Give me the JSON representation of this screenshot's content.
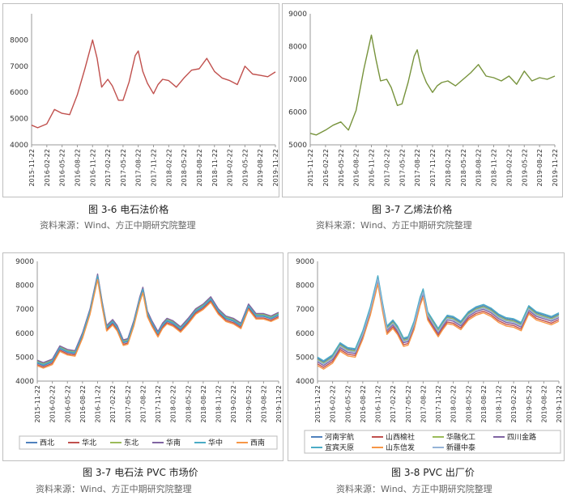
{
  "chart_data": [
    {
      "type": "line",
      "title": "图 3-6 电石法价格",
      "source": "资料来源：Wind、方正中期研究院整理",
      "ylim": [
        4000,
        9000
      ],
      "yticks": [
        "4000",
        "5000",
        "6000",
        "7000",
        "8000"
      ],
      "xticks": [
        "2015-11-22",
        "2016-02-22",
        "2016-05-22",
        "2016-08-22",
        "2016-11-22",
        "2017-02-22",
        "2017-05-22",
        "2017-08-22",
        "2017-11-22",
        "2018-02-22",
        "2018-05-22",
        "2018-08-22",
        "2018-11-22",
        "2019-02-22",
        "2019-05-22",
        "2019-08-22",
        "2019-11-22"
      ],
      "series": [
        {
          "name": "电石法价格",
          "color": "#c0504d",
          "x": [
            0,
            0.4,
            1,
            1.5,
            2,
            2.5,
            3,
            3.5,
            4,
            4.3,
            4.6,
            5,
            5.3,
            5.7,
            6,
            6.4,
            6.8,
            7,
            7.3,
            7.6,
            8,
            8.3,
            8.6,
            9,
            9.5,
            10,
            10.5,
            11,
            11.5,
            12,
            12.5,
            13,
            13.5,
            14,
            14.5,
            15,
            15.5,
            16
          ],
          "y": [
            4750,
            4650,
            4800,
            5350,
            5200,
            5150,
            5900,
            6900,
            8000,
            7300,
            6200,
            6500,
            6250,
            5700,
            5700,
            6400,
            7400,
            7580,
            6800,
            6350,
            5950,
            6300,
            6500,
            6450,
            6200,
            6550,
            6850,
            6900,
            7300,
            6800,
            6550,
            6450,
            6300,
            7000,
            6700,
            6650,
            6600,
            6780
          ]
        }
      ]
    },
    {
      "type": "line",
      "title": "图 3-7 乙烯法价格",
      "source": "资料来源：Wind、方正中期研究院整理",
      "ylim": [
        5000,
        9000
      ],
      "yticks": [
        "5000",
        "6000",
        "7000",
        "8000",
        "9000"
      ],
      "xticks": [
        "2015-11-22",
        "2016-02-22",
        "2016-05-22",
        "2016-08-22",
        "2016-11-22",
        "2017-02-22",
        "2017-05-22",
        "2017-08-22",
        "2017-11-22",
        "2018-02-22",
        "2018-05-22",
        "2018-08-22",
        "2018-11-22",
        "2019-02-22",
        "2019-05-22",
        "2019-08-22",
        "2019-11-22"
      ],
      "series": [
        {
          "name": "乙烯法价格",
          "color": "#77933c",
          "x": [
            0,
            0.4,
            1,
            1.5,
            2,
            2.5,
            3,
            3.5,
            4,
            4.3,
            4.6,
            5,
            5.3,
            5.7,
            6,
            6.4,
            6.8,
            7,
            7.3,
            7.6,
            8,
            8.3,
            8.6,
            9,
            9.5,
            10,
            10.5,
            11,
            11.5,
            12,
            12.5,
            13,
            13.5,
            14,
            14.5,
            15,
            15.5,
            16
          ],
          "y": [
            5350,
            5300,
            5450,
            5600,
            5700,
            5450,
            6050,
            7300,
            8350,
            7600,
            6950,
            7000,
            6750,
            6200,
            6250,
            6900,
            7700,
            7900,
            7250,
            6900,
            6600,
            6800,
            6900,
            6950,
            6800,
            7000,
            7200,
            7450,
            7100,
            7050,
            6950,
            7100,
            6850,
            7250,
            6950,
            7050,
            7000,
            7100
          ]
        }
      ]
    },
    {
      "type": "line",
      "title": "图 3-7 电石法 PVC 市场价",
      "source": "资料来源：Wind、方正中期研究院整理",
      "ylim": [
        4000,
        9000
      ],
      "yticks": [
        "4000",
        "5000",
        "6000",
        "7000",
        "8000",
        "9000"
      ],
      "xticks": [
        "2015-11-22",
        "2016-02-22",
        "2016-05-22",
        "2016-08-22",
        "2016-11-22",
        "2017-02-22",
        "2017-05-22",
        "2017-08-22",
        "2017-11-22",
        "2018-02-22",
        "2018-05-22",
        "2018-08-22",
        "2018-11-22",
        "2019-02-22",
        "2019-05-22",
        "2019-08-22",
        "2019-11-22"
      ],
      "x": [
        0,
        0.4,
        1,
        1.5,
        2,
        2.5,
        3,
        3.5,
        4,
        4.3,
        4.6,
        5,
        5.3,
        5.7,
        6,
        6.4,
        6.8,
        7,
        7.3,
        7.6,
        8,
        8.3,
        8.6,
        9,
        9.5,
        10,
        10.5,
        11,
        11.5,
        12,
        12.5,
        13,
        13.5,
        14,
        14.5,
        15,
        15.5,
        16
      ],
      "base": [
        4750,
        4650,
        4800,
        5350,
        5200,
        5150,
        5900,
        6900,
        8350,
        7200,
        6200,
        6450,
        6200,
        5600,
        5650,
        6400,
        7400,
        7800,
        6800,
        6400,
        5950,
        6300,
        6500,
        6400,
        6150,
        6500,
        6900,
        7100,
        7400,
        6900,
        6600,
        6500,
        6300,
        7100,
        6700,
        6700,
        6600,
        6750
      ],
      "series": [
        {
          "name": "西北",
          "color": "#4f81bd",
          "offset": 0
        },
        {
          "name": "华北",
          "color": "#c0504d",
          "offset": -60
        },
        {
          "name": "东北",
          "color": "#9bbb59",
          "offset": 80
        },
        {
          "name": "华南",
          "color": "#8064a2",
          "offset": 120
        },
        {
          "name": "华中",
          "color": "#4bacc6",
          "offset": 40
        },
        {
          "name": "西南",
          "color": "#f79646",
          "offset": -110
        }
      ]
    },
    {
      "type": "line",
      "title": "图 3-8 PVC 出厂价",
      "source": "资料来源：Wind、方正中期研究院整理",
      "ylim": [
        4000,
        9000
      ],
      "yticks": [
        "4000",
        "5000",
        "6000",
        "7000",
        "8000",
        "9000"
      ],
      "xticks": [
        "2015-11-22",
        "2016-02-22",
        "2016-05-22",
        "2016-08-22",
        "2016-11-22",
        "2017-02-22",
        "2017-05-22",
        "2017-08-22",
        "2017-11-22",
        "2018-02-22",
        "2018-05-22",
        "2018-08-22",
        "2018-11-22",
        "2019-02-22",
        "2019-05-22",
        "2019-08-22",
        "2019-11-22"
      ],
      "x": [
        0,
        0.4,
        1,
        1.5,
        2,
        2.5,
        3,
        3.5,
        4,
        4.3,
        4.6,
        5,
        5.3,
        5.7,
        6,
        6.4,
        6.8,
        7,
        7.3,
        7.6,
        8,
        8.3,
        8.6,
        9,
        9.5,
        10,
        10.5,
        11,
        11.5,
        12,
        12.5,
        13,
        13.5,
        14,
        14.5,
        15,
        15.5,
        16
      ],
      "base": [
        4800,
        4650,
        4900,
        5400,
        5200,
        5150,
        5900,
        6900,
        8200,
        7100,
        6100,
        6350,
        6100,
        5600,
        5650,
        6300,
        7300,
        7650,
        6700,
        6400,
        6000,
        6300,
        6550,
        6500,
        6300,
        6700,
        6900,
        7000,
        6850,
        6600,
        6450,
        6400,
        6250,
        6950,
        6700,
        6600,
        6500,
        6650
      ],
      "series": [
        {
          "name": "河南宇航",
          "color": "#4f81bd",
          "offset": 150
        },
        {
          "name": "山西榆社",
          "color": "#c0504d",
          "offset": -80
        },
        {
          "name": "华融化工",
          "color": "#9bbb59",
          "offset": 100
        },
        {
          "name": "四川金路",
          "color": "#8064a2",
          "offset": 0
        },
        {
          "name": "宜宾天原",
          "color": "#4bacc6",
          "offset": 200
        },
        {
          "name": "山东信发",
          "color": "#f79646",
          "offset": -150
        },
        {
          "name": "新疆中泰",
          "color": "#95b3d7",
          "offset": 60
        }
      ]
    }
  ]
}
